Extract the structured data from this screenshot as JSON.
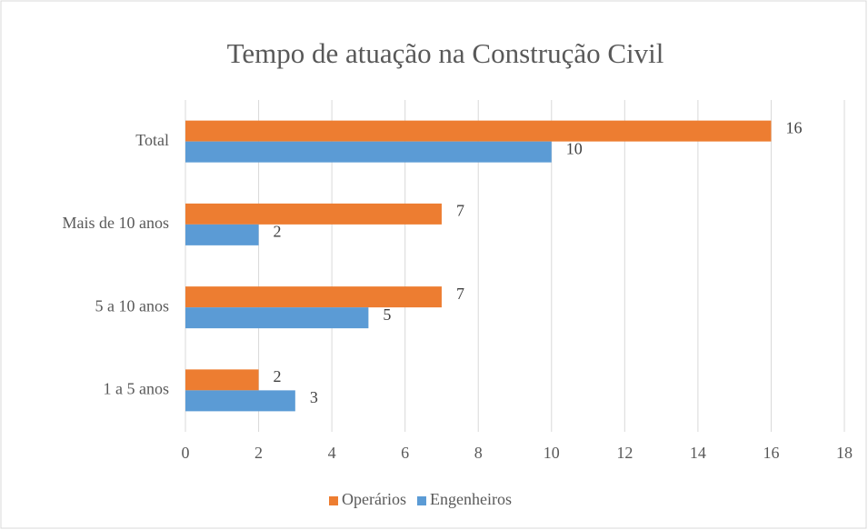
{
  "chart_data": {
    "type": "bar",
    "orientation": "horizontal",
    "title": "Tempo de atuação na Construção Civil",
    "categories": [
      "Total",
      "Mais de 10 anos",
      "5 a 10 anos",
      "1 a 5 anos"
    ],
    "series": [
      {
        "name": "Operários",
        "color": "#ED7D31",
        "values": [
          16,
          7,
          7,
          2
        ]
      },
      {
        "name": "Engenheiros",
        "color": "#5B9BD5",
        "values": [
          10,
          2,
          5,
          3
        ]
      }
    ],
    "xlim": [
      0,
      18
    ],
    "xticks": [
      0,
      2,
      4,
      6,
      8,
      10,
      12,
      14,
      16,
      18
    ],
    "grid": true,
    "legend": "bottom"
  }
}
